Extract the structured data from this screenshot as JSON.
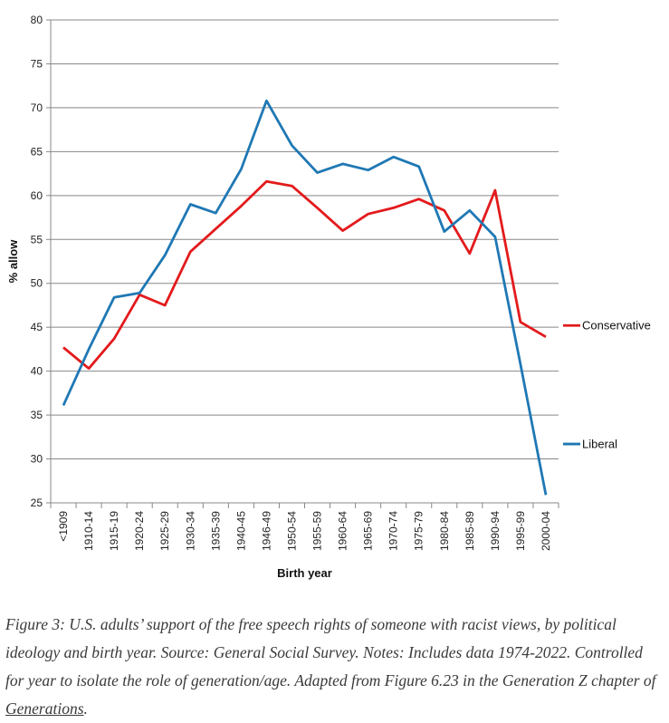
{
  "chart_data": {
    "type": "line",
    "title": "",
    "xlabel": "Birth year",
    "ylabel": "% allow",
    "ylim": [
      25,
      80
    ],
    "yticks": [
      25,
      30,
      35,
      40,
      45,
      50,
      55,
      60,
      65,
      70,
      75,
      80
    ],
    "grid": true,
    "legend": "right",
    "categories": [
      "<1909",
      "1910-14",
      "1915-19",
      "1920-24",
      "1925-29",
      "1930-34",
      "1935-39",
      "1940-45",
      "1946-49",
      "1950-54",
      "1955-59",
      "1960-64",
      "1965-69",
      "1970-74",
      "1975-79",
      "1980-84",
      "1985-89",
      "1990-94",
      "1995-99",
      "2000-04"
    ],
    "series": [
      {
        "name": "Conservative",
        "color": "#e31a1c",
        "values": [
          42.7,
          40.3,
          43.7,
          48.7,
          47.5,
          53.6,
          56.2,
          58.8,
          61.6,
          61.1,
          58.6,
          56.0,
          57.9,
          58.6,
          59.6,
          58.3,
          53.4,
          60.6,
          45.6,
          43.9
        ]
      },
      {
        "name": "Liberal",
        "color": "#1f78b4",
        "values": [
          36.1,
          42.5,
          48.4,
          48.9,
          53.2,
          59.0,
          58.0,
          63.0,
          70.8,
          65.7,
          62.6,
          63.6,
          62.9,
          64.4,
          63.3,
          55.9,
          58.3,
          55.3,
          40.8,
          25.9
        ]
      }
    ]
  },
  "caption": {
    "text": "Figure 3: U.S. adults’ support of the free speech rights of someone with racist views, by political ideology and birth year. Source: General Social Survey. Notes: Includes data 1974-2022. Controlled for year to isolate the role of generation/age. Adapted from Figure 6.23 in the Generation Z chapter of ",
    "link_text": "Generations",
    "end": "."
  }
}
